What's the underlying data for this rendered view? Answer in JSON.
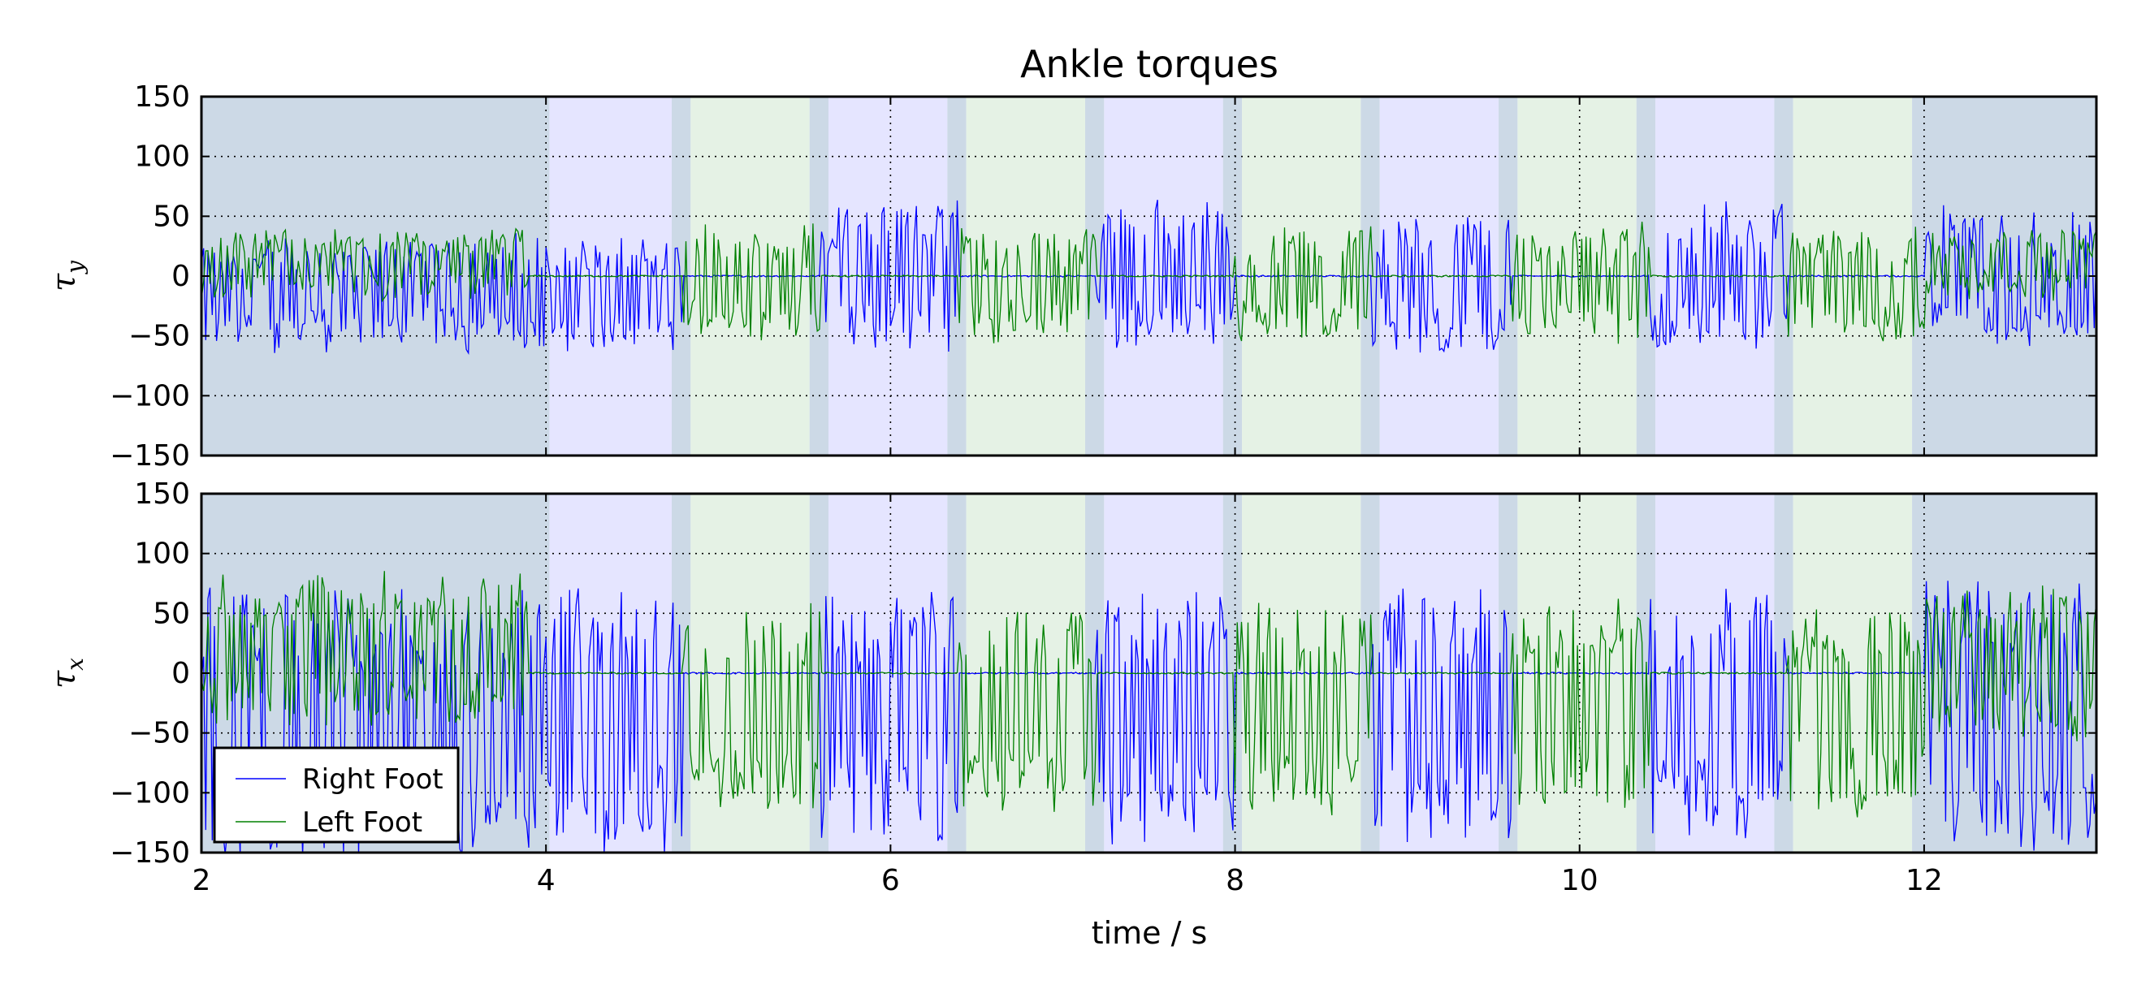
{
  "figure": {
    "title": "Ankle torques",
    "xlabel": "time / s",
    "legend": [
      {
        "label": "Right Foot",
        "color": "#0000ff"
      },
      {
        "label": "Left Foot",
        "color": "#008000"
      }
    ]
  },
  "chart_data": [
    {
      "type": "line",
      "title": "Ankle torques",
      "ylabel_main": "τ",
      "ylabel_sub": "y",
      "xlim": [
        2,
        13
      ],
      "ylim": [
        -150,
        150
      ],
      "xticks": [
        2,
        4,
        6,
        8,
        10,
        12
      ],
      "xtick_labels": [
        "",
        "",
        "",
        "",
        "",
        ""
      ],
      "yticks": [
        150,
        100,
        50,
        0,
        -50,
        -100,
        -150
      ],
      "ytick_labels": [
        "150",
        "100",
        "50",
        "0",
        "−50",
        "−100",
        "−150"
      ],
      "grid": true,
      "series": [
        {
          "name": "Right Foot",
          "color": "#0000ff",
          "segments": [
            {
              "x0": 2.0,
              "x1": 4.8,
              "center": -15,
              "amp": 45
            },
            {
              "x0": 5.6,
              "x1": 6.4,
              "center": 0,
              "amp": 60
            },
            {
              "x0": 7.2,
              "x1": 8.0,
              "center": 0,
              "amp": 60
            },
            {
              "x0": 8.8,
              "x1": 9.6,
              "center": -5,
              "amp": 55
            },
            {
              "x0": 10.4,
              "x1": 11.2,
              "center": 0,
              "amp": 60
            },
            {
              "x0": 12.0,
              "x1": 13.0,
              "center": 0,
              "amp": 55
            }
          ]
        },
        {
          "name": "Left Foot",
          "color": "#008000",
          "segments": [
            {
              "x0": 2.0,
              "x1": 3.9,
              "center": 10,
              "amp": 25
            },
            {
              "x0": 4.8,
              "x1": 5.6,
              "center": -5,
              "amp": 45
            },
            {
              "x0": 6.4,
              "x1": 7.2,
              "center": -5,
              "amp": 45
            },
            {
              "x0": 8.0,
              "x1": 8.8,
              "center": -5,
              "amp": 45
            },
            {
              "x0": 9.6,
              "x1": 10.4,
              "center": -5,
              "amp": 45
            },
            {
              "x0": 11.2,
              "x1": 12.0,
              "center": -5,
              "amp": 45
            },
            {
              "x0": 12.0,
              "x1": 13.0,
              "center": 10,
              "amp": 25
            }
          ]
        }
      ]
    },
    {
      "type": "line",
      "ylabel_main": "τ",
      "ylabel_sub": "x",
      "xlim": [
        2,
        13
      ],
      "ylim": [
        -150,
        150
      ],
      "xticks": [
        2,
        4,
        6,
        8,
        10,
        12
      ],
      "xtick_labels": [
        "2",
        "4",
        "6",
        "8",
        "10",
        "12"
      ],
      "yticks": [
        150,
        100,
        50,
        0,
        -50,
        -100,
        -150
      ],
      "ytick_labels": [
        "150",
        "100",
        "50",
        "0",
        "−50",
        "−100",
        "−150"
      ],
      "grid": true,
      "legend_position": "lower-left",
      "series": [
        {
          "name": "Right Foot",
          "color": "#0000ff",
          "segments": [
            {
              "x0": 2.0,
              "x1": 4.8,
              "center": -40,
              "amp": 110
            },
            {
              "x0": 5.6,
              "x1": 6.4,
              "center": -35,
              "amp": 105
            },
            {
              "x0": 7.2,
              "x1": 8.0,
              "center": -35,
              "amp": 105
            },
            {
              "x0": 8.8,
              "x1": 9.6,
              "center": -35,
              "amp": 105
            },
            {
              "x0": 10.4,
              "x1": 11.2,
              "center": -35,
              "amp": 105
            },
            {
              "x0": 12.0,
              "x1": 13.0,
              "center": -35,
              "amp": 110
            }
          ]
        },
        {
          "name": "Left Foot",
          "color": "#008000",
          "segments": [
            {
              "x0": 2.0,
              "x1": 3.9,
              "center": 20,
              "amp": 60
            },
            {
              "x0": 4.8,
              "x1": 5.6,
              "center": -30,
              "amp": 85
            },
            {
              "x0": 6.4,
              "x1": 7.2,
              "center": -30,
              "amp": 85
            },
            {
              "x0": 8.0,
              "x1": 8.8,
              "center": -30,
              "amp": 85
            },
            {
              "x0": 9.6,
              "x1": 10.4,
              "center": -30,
              "amp": 85
            },
            {
              "x0": 11.2,
              "x1": 12.0,
              "center": -30,
              "amp": 85
            },
            {
              "x0": 12.0,
              "x1": 13.0,
              "center": 10,
              "amp": 60
            }
          ]
        }
      ]
    }
  ],
  "phases": [
    {
      "x0": 2.0,
      "x1": 4.02,
      "color": "#ccd9e6"
    },
    {
      "x0": 4.02,
      "x1": 4.73,
      "color": "#e5e5ff"
    },
    {
      "x0": 4.73,
      "x1": 4.84,
      "color": "#ccd9e6"
    },
    {
      "x0": 4.84,
      "x1": 5.53,
      "color": "#e5f2e5"
    },
    {
      "x0": 5.53,
      "x1": 5.64,
      "color": "#ccd9e6"
    },
    {
      "x0": 5.64,
      "x1": 6.33,
      "color": "#e5e5ff"
    },
    {
      "x0": 6.33,
      "x1": 6.44,
      "color": "#ccd9e6"
    },
    {
      "x0": 6.44,
      "x1": 7.13,
      "color": "#e5f2e5"
    },
    {
      "x0": 7.13,
      "x1": 7.24,
      "color": "#ccd9e6"
    },
    {
      "x0": 7.24,
      "x1": 7.93,
      "color": "#e5e5ff"
    },
    {
      "x0": 7.93,
      "x1": 8.04,
      "color": "#ccd9e6"
    },
    {
      "x0": 8.04,
      "x1": 8.73,
      "color": "#e5f2e5"
    },
    {
      "x0": 8.73,
      "x1": 8.84,
      "color": "#ccd9e6"
    },
    {
      "x0": 8.84,
      "x1": 9.53,
      "color": "#e5e5ff"
    },
    {
      "x0": 9.53,
      "x1": 9.64,
      "color": "#ccd9e6"
    },
    {
      "x0": 9.64,
      "x1": 10.33,
      "color": "#e5f2e5"
    },
    {
      "x0": 10.33,
      "x1": 10.44,
      "color": "#ccd9e6"
    },
    {
      "x0": 10.44,
      "x1": 11.13,
      "color": "#e5e5ff"
    },
    {
      "x0": 11.13,
      "x1": 11.24,
      "color": "#ccd9e6"
    },
    {
      "x0": 11.24,
      "x1": 11.93,
      "color": "#e5f2e5"
    },
    {
      "x0": 11.93,
      "x1": 13.0,
      "color": "#ccd9e6"
    }
  ]
}
